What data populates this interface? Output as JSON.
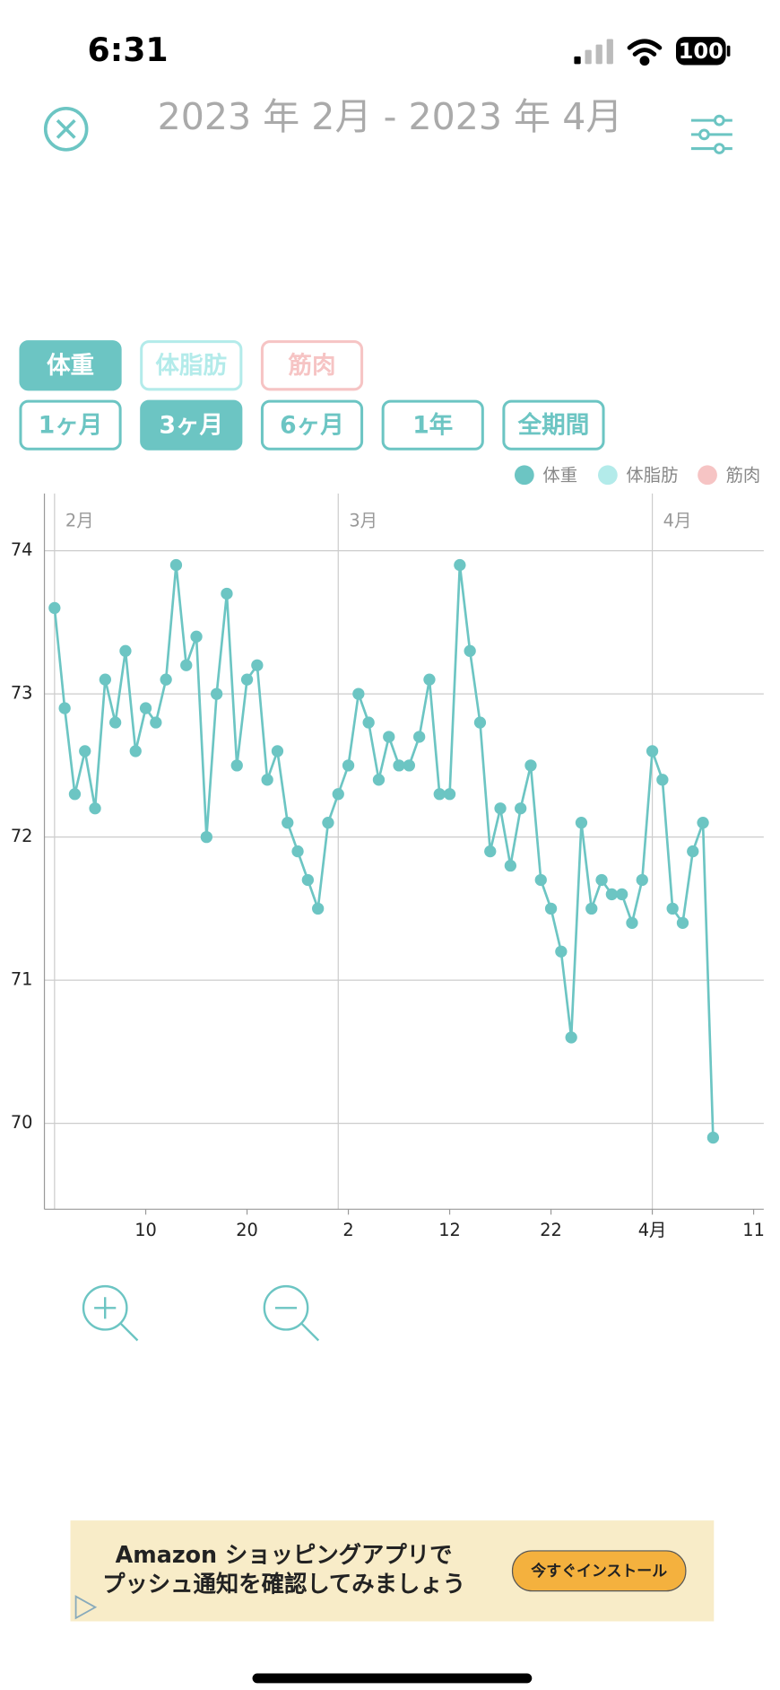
{
  "status_bar": {
    "time": "6:31",
    "battery": "100"
  },
  "header": {
    "title": "2023 年 2月 - 2023 年 4月"
  },
  "metric_tabs": [
    "体重",
    "体脂肪",
    "筋肉"
  ],
  "period_tabs": [
    "1ヶ月",
    "3ヶ月",
    "6ヶ月",
    "1年",
    "全期間"
  ],
  "chart_data": {
    "type": "line",
    "legend": [
      {
        "name": "体重",
        "color": "#6cc5c3"
      },
      {
        "name": "体脂肪",
        "color": "#b3ebea"
      },
      {
        "name": "筋肉",
        "color": "#f6c4c4"
      }
    ],
    "x": [
      "2023-02-01",
      "2023-02-02",
      "2023-02-03",
      "2023-02-04",
      "2023-02-05",
      "2023-02-06",
      "2023-02-07",
      "2023-02-08",
      "2023-02-09",
      "2023-02-10",
      "2023-02-11",
      "2023-02-12",
      "2023-02-13",
      "2023-02-14",
      "2023-02-15",
      "2023-02-16",
      "2023-02-17",
      "2023-02-18",
      "2023-02-19",
      "2023-02-20",
      "2023-02-21",
      "2023-02-22",
      "2023-02-23",
      "2023-02-24",
      "2023-02-25",
      "2023-02-26",
      "2023-02-27",
      "2023-02-28",
      "2023-03-01",
      "2023-03-02",
      "2023-03-03",
      "2023-03-04",
      "2023-03-05",
      "2023-03-06",
      "2023-03-07",
      "2023-03-08",
      "2023-03-09",
      "2023-03-10",
      "2023-03-11",
      "2023-03-12",
      "2023-03-13",
      "2023-03-14",
      "2023-03-15",
      "2023-03-16",
      "2023-03-17",
      "2023-03-18",
      "2023-03-19",
      "2023-03-20",
      "2023-03-21",
      "2023-03-22",
      "2023-03-23",
      "2023-03-24",
      "2023-03-25",
      "2023-03-26",
      "2023-03-27",
      "2023-03-28",
      "2023-03-29",
      "2023-03-30",
      "2023-03-31",
      "2023-04-01",
      "2023-04-02",
      "2023-04-03",
      "2023-04-04",
      "2023-04-05",
      "2023-04-06",
      "2023-04-07"
    ],
    "series": [
      {
        "color": "#6cc5c3",
        "values": [
          73.6,
          72.9,
          72.3,
          72.6,
          72.2,
          73.1,
          72.8,
          73.3,
          72.6,
          72.9,
          72.8,
          73.1,
          73.9,
          73.2,
          73.4,
          72.0,
          73.0,
          73.7,
          72.5,
          73.1,
          73.2,
          72.4,
          72.6,
          72.1,
          71.9,
          71.7,
          71.5,
          72.1,
          72.3,
          72.5,
          73.0,
          72.8,
          72.4,
          72.7,
          72.5,
          72.5,
          72.7,
          73.1,
          72.3,
          72.3,
          73.9,
          73.3,
          72.8,
          71.9,
          72.2,
          71.8,
          72.2,
          72.5,
          71.7,
          71.5,
          71.2,
          70.6,
          72.1,
          71.5,
          71.7,
          71.6,
          71.6,
          71.4,
          71.7,
          72.6,
          72.4,
          71.5,
          71.4,
          71.9,
          72.1,
          69.9
        ]
      }
    ],
    "xlim": [
      "2023-01-31",
      "2023-04-12"
    ],
    "xticks": [
      {
        "value": "2023-02-10",
        "label": "10"
      },
      {
        "value": "2023-02-20",
        "label": "20"
      },
      {
        "value": "2023-03-02",
        "label": "2"
      },
      {
        "value": "2023-03-12",
        "label": "12"
      },
      {
        "value": "2023-03-22",
        "label": "22"
      },
      {
        "value": "2023-04-01",
        "label": "4月"
      },
      {
        "value": "2023-04-11",
        "label": "11"
      }
    ],
    "month_ticks": [
      {
        "value": "2023-02-01",
        "label": "2月"
      },
      {
        "value": "2023-03-01",
        "label": "3月"
      },
      {
        "value": "2023-04-01",
        "label": "4月"
      }
    ],
    "ylim": [
      69.4,
      74.4
    ],
    "yticks": [
      70,
      71,
      72,
      73,
      74
    ],
    "grid": true
  },
  "ad": {
    "line1": "Amazon ショッピングアプリで",
    "line2": "プッシュ通知を確認してみましょう",
    "button": "今すぐインストール"
  }
}
